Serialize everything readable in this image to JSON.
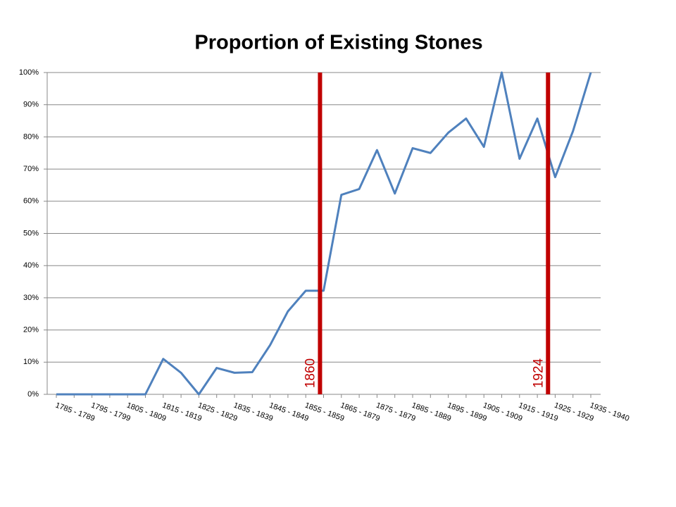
{
  "chart_data": {
    "type": "line",
    "title": "Proportion of Existing Stones",
    "categories": [
      "1785 - 1789",
      null,
      "1795 - 1799",
      null,
      "1805 - 1809",
      null,
      "1815 - 1819",
      null,
      "1825 - 1829",
      null,
      "1835 - 1839",
      null,
      "1845 - 1849",
      null,
      "1855 - 1859",
      null,
      "1865 - 1879",
      null,
      "1875 - 1879",
      null,
      "1885 - 1889",
      null,
      "1895 - 1899",
      null,
      "1905 - 1909",
      null,
      "1915 - 1919",
      null,
      "1925 - 1929",
      null,
      "1935 - 1940"
    ],
    "series": [
      {
        "name": null,
        "color": "#4f81bd",
        "values": [
          0,
          0,
          0,
          0,
          0,
          0,
          11,
          6.7,
          0,
          8.2,
          6.7,
          6.9,
          15.3,
          25.8,
          32.2,
          32.2,
          62,
          63.8,
          75.9,
          62.4,
          76.5,
          75,
          81.3,
          85.7,
          76.9,
          100,
          73.2,
          85.7,
          67.5,
          81.8,
          100
        ]
      }
    ],
    "ylim": [
      0,
      100
    ],
    "yticks": [
      {
        "value": 0,
        "label": "0%"
      },
      {
        "value": 10,
        "label": "10%"
      },
      {
        "value": 20,
        "label": "20%"
      },
      {
        "value": 30,
        "label": "30%"
      },
      {
        "value": 40,
        "label": "40%"
      },
      {
        "value": 50,
        "label": "50%"
      },
      {
        "value": 60,
        "label": "60%"
      },
      {
        "value": 70,
        "label": "70%"
      },
      {
        "value": 80,
        "label": "80%"
      },
      {
        "value": 90,
        "label": "90%"
      },
      {
        "value": 100,
        "label": "100%"
      }
    ],
    "grid": true,
    "annotations": [
      {
        "label": "1860",
        "year": 1860,
        "color": "#c00000"
      },
      {
        "label": "1924",
        "year": 1924,
        "color": "#c00000"
      }
    ]
  }
}
